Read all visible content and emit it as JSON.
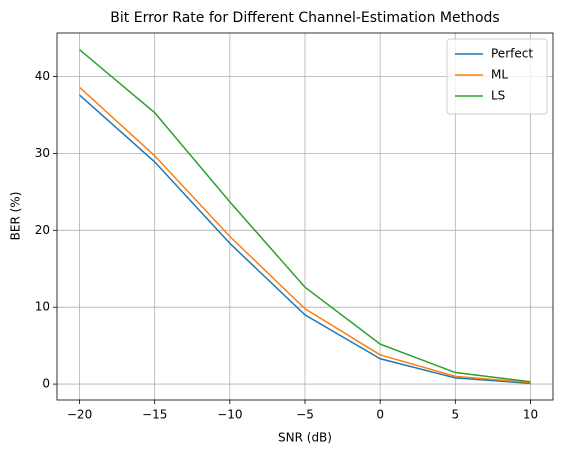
{
  "chart_data": {
    "type": "line",
    "title": "Bit Error Rate for Different Channel-Estimation Methods",
    "x_label": "SNR (dB)",
    "y_label": "BER (%)",
    "x": [
      -20,
      -15,
      -10,
      -5,
      0,
      5,
      10
    ],
    "series": [
      {
        "name": "Perfect",
        "color": "#1f77b4",
        "values": [
          37.6,
          28.9,
          18.3,
          9.0,
          3.3,
          0.8,
          0.1
        ]
      },
      {
        "name": "ML",
        "color": "#ff7f0e",
        "values": [
          38.6,
          29.7,
          19.2,
          9.8,
          3.8,
          1.0,
          0.2
        ]
      },
      {
        "name": "LS",
        "color": "#2ca02c",
        "values": [
          43.5,
          35.3,
          23.7,
          12.6,
          5.2,
          1.5,
          0.3
        ]
      }
    ],
    "xlim": [
      -21.5,
      11.5
    ],
    "xticks": [
      {
        "value": -20,
        "label": "−20"
      },
      {
        "value": -15,
        "label": "−15"
      },
      {
        "value": -10,
        "label": "−10"
      },
      {
        "value": -5,
        "label": "−5"
      },
      0,
      5,
      10
    ],
    "ylim": [
      -2.07,
      45.67
    ],
    "yticks": [
      0,
      10,
      20,
      30,
      40
    ],
    "grid": true,
    "legend": "upper right"
  }
}
